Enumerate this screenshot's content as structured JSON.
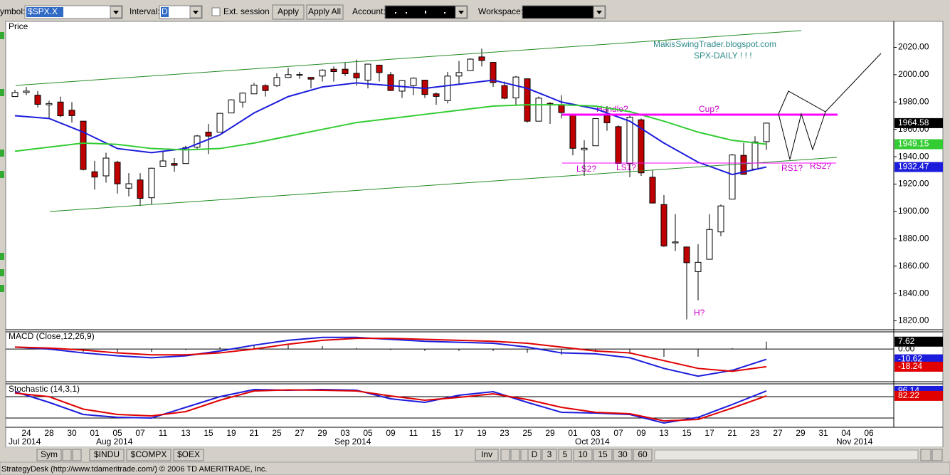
{
  "toolbar": {
    "symbol_label": "ymbol:",
    "symbol": "$SPX.X",
    "interval_label": "Interval:",
    "interval": "D",
    "ext_session": "Ext. session",
    "apply": "Apply",
    "apply_all": "Apply All",
    "account_label": "Account:",
    "workspace_label": "Workspace:"
  },
  "price": {
    "title": "Price",
    "ylim": [
      1814,
      2039
    ],
    "yticks": [
      {
        "value": 2020,
        "label": "2020.00"
      },
      {
        "value": 2000,
        "label": "2000.00"
      },
      {
        "value": 1980,
        "label": "1980.00"
      },
      {
        "value": 1960,
        "label": "1960.00"
      },
      {
        "value": 1940,
        "label": "1940.00"
      },
      {
        "value": 1920,
        "label": "1920.00"
      },
      {
        "value": 1900,
        "label": "1900.00"
      },
      {
        "value": 1880,
        "label": "1880.00"
      },
      {
        "value": 1860,
        "label": "1860.00"
      },
      {
        "value": 1840,
        "label": "1840.00"
      },
      {
        "value": 1820,
        "label": "1820.00"
      }
    ],
    "up_color": "#ffffff",
    "down_color": "#c00000",
    "open": [
      1984,
      1987,
      1985,
      1978,
      1980,
      1974,
      1966,
      1929,
      1926,
      1936,
      1917,
      1923,
      1910,
      1933,
      1935,
      1935,
      1947,
      1958,
      1958,
      1972,
      1980,
      1986,
      1992,
      1992,
      1998,
      2000,
      1998,
      1999,
      2004,
      2004,
      2001,
      1996,
      2007,
      2000,
      1988,
      1992,
      1996,
      1986,
      1981,
      1999,
      2003,
      2013,
      2009,
      1992,
      1983,
      1997,
      1966,
      1979,
      1978,
      1971,
      1945,
      1948,
      1970,
      1962,
      1935,
      1967,
      1925,
      1905,
      1877,
      1874,
      1856,
      1865,
      1885,
      1909,
      1941,
      1931,
      1951
    ],
    "close": [
      1987.01,
      1987.98,
      1978.34,
      1978.91,
      1969.95,
      1970.07,
      1930.67,
      1925.15,
      1938.99,
      1920.21,
      1920.24,
      1909.57,
      1931.59,
      1936.92,
      1933.75,
      1946.72,
      1955.18,
      1955.06,
      1971.74,
      1981.6,
      1986.51,
      1992.37,
      1988.4,
      1997.92,
      2000.02,
      2000.12,
      1996.74,
      2003.37,
      2002.28,
      2000.72,
      1997.65,
      2007.71,
      2001.54,
      1988.44,
      1995.69,
      1997.45,
      1985.54,
      1984.13,
      1998.98,
      2001.57,
      2011.36,
      2010.4,
      1994.29,
      1982.77,
      1998.3,
      1965.99,
      1982.85,
      1977.8,
      1972.29,
      1946.16,
      1946.17,
      1967.9,
      1964.82,
      1935.1,
      1968.89,
      1928.21,
      1906.13,
      1874.74,
      1877.7,
      1862.49,
      1862.76,
      1886.76,
      1904.01,
      1941.28,
      1927.11,
      1950.82,
      1964.58
    ],
    "high": [
      1989,
      1991,
      1988,
      1981,
      1984,
      1980,
      1966,
      1937,
      1943,
      1937,
      1928,
      1928,
      1932,
      1944,
      1939,
      1948,
      1956,
      1964,
      1972,
      1982,
      1987,
      1994,
      1993,
      2001,
      2005,
      2002,
      1998,
      2004,
      2006,
      2009,
      2011,
      2008,
      2007,
      2002,
      1996,
      1998,
      1996,
      1987,
      2002,
      2010,
      2012,
      2019,
      2009,
      1995,
      1999,
      1997,
      1984,
      1980,
      1985,
      1971,
      1952,
      1968,
      1977,
      1963,
      1970,
      1968,
      1930,
      1912,
      1898,
      1874,
      1876,
      1898,
      1905,
      1942,
      1950,
      1955,
      1965
    ],
    "low": [
      1984,
      1985,
      1976,
      1968,
      1969,
      1965,
      1930,
      1916,
      1921,
      1913,
      1911,
      1904,
      1905,
      1933,
      1929,
      1935,
      1945,
      1942,
      1958,
      1972,
      1976,
      1986,
      1984,
      1991,
      1998,
      1997,
      1990,
      1995,
      1995,
      1999,
      1992,
      1990,
      1995,
      1988,
      1983,
      1985,
      1983,
      1978,
      1979,
      1993,
      2003,
      2006,
      1991,
      1982,
      1978,
      1965,
      1966,
      1964,
      1968,
      1941,
      1926,
      1948,
      1959,
      1935,
      1925,
      1926,
      1906,
      1874,
      1871,
      1821,
      1835,
      1865,
      1882,
      1909,
      1927,
      1931,
      1945
    ],
    "last_color": "#000000",
    "ma_fast": {
      "color": "#1c1cdc",
      "values": [
        1970,
        1968,
        1958,
        1946,
        1943,
        1946,
        1956,
        1972,
        1984,
        1991,
        1994,
        1992,
        1990,
        1993,
        1996,
        1990,
        1980,
        1975,
        1966,
        1950,
        1936,
        1927,
        1932.47
      ]
    },
    "ma_slow": {
      "color": "#33cc33",
      "values": [
        1944,
        1947,
        1950,
        1949,
        1946,
        1945,
        1946,
        1950,
        1955,
        1960,
        1965,
        1968,
        1971,
        1974,
        1977,
        1978,
        1978,
        1977,
        1973,
        1966,
        1958,
        1952,
        1949.15
      ]
    }
  },
  "annotations": {
    "blog": "MakisSwingTrader.blogspot.com",
    "daily": "SPX-DAILY  ! ! !",
    "handle": "Handle?",
    "cup": "Cup?",
    "ls2": "LS2?",
    "ls1": "LS1?",
    "rs1": "RS1?",
    "rs2": "RS2?",
    "head": "H?"
  },
  "macd": {
    "title": "MACD (Close,12,26,9)",
    "ylim": [
      -33,
      17
    ],
    "yticks": [
      {
        "value": 0,
        "label": "0.00"
      }
    ],
    "macd": {
      "color": "#1c1cdc",
      "values": [
        2,
        0,
        -4,
        -7,
        -9,
        -7,
        -2,
        4,
        9,
        12,
        12,
        10,
        8,
        7,
        6,
        2,
        -4,
        -5,
        -9,
        -20,
        -28,
        -22,
        -10.62
      ]
    },
    "signal": {
      "color": "#e00000",
      "values": [
        2,
        1,
        -1,
        -4,
        -6,
        -6,
        -4,
        0,
        5,
        9,
        11,
        11,
        10,
        9,
        8,
        6,
        2,
        -2,
        -4,
        -12,
        -20,
        -23,
        -18.24
      ]
    },
    "hist": {
      "color": "#000000",
      "values": [
        0,
        -1,
        -3,
        -3,
        -3,
        -1,
        2,
        4,
        4,
        3,
        1,
        -1,
        -2,
        -2,
        -2,
        -4,
        -6,
        -3,
        -5,
        -8,
        -8,
        1,
        7.62
      ]
    }
  },
  "stochastic": {
    "title": "Stochastic (14,3,1)",
    "ylim": [
      -6,
      114
    ],
    "levels": [
      80,
      20
    ],
    "k": {
      "color": "#1c1cdc",
      "values": [
        94,
        64,
        30,
        22,
        20,
        50,
        80,
        100,
        98,
        100,
        98,
        74,
        64,
        84,
        94,
        64,
        36,
        34,
        30,
        6,
        22,
        58,
        96.14
      ]
    },
    "d": {
      "color": "#e00000",
      "values": [
        90,
        80,
        45,
        30,
        26,
        38,
        70,
        96,
        99,
        98,
        96,
        82,
        70,
        78,
        88,
        72,
        50,
        36,
        32,
        12,
        16,
        48,
        82.22
      ]
    }
  },
  "axis": {
    "days": [
      "24",
      "28",
      "30",
      "01",
      "05",
      "07",
      "11",
      "13",
      "15",
      "19",
      "21",
      "25",
      "27",
      "29",
      "03",
      "05",
      "09",
      "11",
      "15",
      "17",
      "19",
      "23",
      "25",
      "29",
      "01",
      "03",
      "07",
      "09",
      "13",
      "15",
      "17",
      "21",
      "23",
      "27",
      "29",
      "31",
      "04",
      "06"
    ],
    "months": [
      "Jul 2014",
      "Aug 2014",
      "Sep 2014",
      "Oct 2014",
      "Nov 2014"
    ]
  },
  "bottom_bar": {
    "sym": "Sym",
    "tabs": [
      "$INDU",
      "$COMPX",
      "$OEX"
    ],
    "inv": "Inv",
    "intervals": [
      "D",
      "3",
      "5",
      "10",
      "15",
      "30",
      "60"
    ]
  },
  "status": "StrategyDesk (http://www.tdameritrade.com/) © 2006 TD AMERITRADE, Inc."
}
